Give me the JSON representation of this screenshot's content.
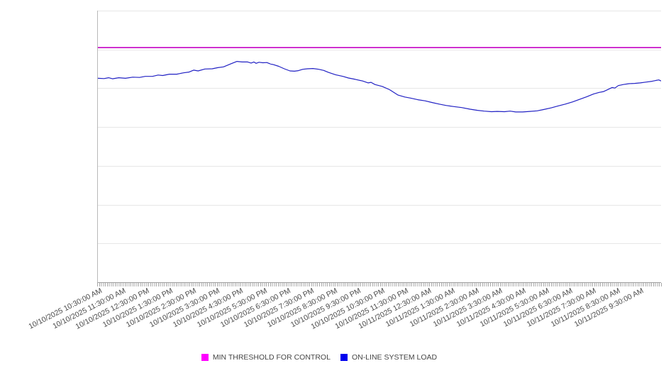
{
  "chart_data": {
    "type": "line",
    "title": "",
    "x_axis": {
      "rotation_deg": -27,
      "tick_labels": [
        "10/10/2025 10:30:00 AM",
        "10/10/2025 11:30:00 AM",
        "10/10/2025 12:30:00 PM",
        "10/10/2025 1:30:00 PM",
        "10/10/2025 2:30:00 PM",
        "10/10/2025 3:30:00 PM",
        "10/10/2025 4:30:00 PM",
        "10/10/2025 5:30:00 PM",
        "10/10/2025 6:30:00 PM",
        "10/10/2025 7:30:00 PM",
        "10/10/2025 8:30:00 PM",
        "10/10/2025 9:30:00 PM",
        "10/10/2025 10:30:00 PM",
        "10/10/2025 11:30:00 PM",
        "10/11/2025 12:30:00 AM",
        "10/11/2025 1:30:00 AM",
        "10/11/2025 2:30:00 AM",
        "10/11/2025 3:30:00 AM",
        "10/11/2025 4:30:00 AM",
        "10/11/2025 5:30:00 AM",
        "10/11/2025 6:30:00 AM",
        "10/11/2025 7:30:00 AM",
        "10/11/2025 8:30:00 AM",
        "10/11/2025 9:30:00 AM"
      ],
      "minor_ticks": "dense per-sample tick comb along full axis"
    },
    "y_axis": {
      "tick_labels_visible": false,
      "gridlines": 7,
      "note": "y axis unlabeled; series values given as percent of plot height (0 = bottom axis, 100 = top gridline)"
    },
    "legend_position": "bottom-center",
    "series": [
      {
        "name": "MIN THRESHOLD FOR CONTROL",
        "type": "threshold",
        "color": "#c814c8",
        "swatch_color": "#ff00ff",
        "value_percent_of_plot_height": 86.4
      },
      {
        "name": "ON-LINE SYSTEM LOAD",
        "type": "line",
        "color": "#2222c4",
        "swatch_color": "#0000ee",
        "points_percent": [
          [
            0.0,
            75.1
          ],
          [
            1.1,
            75.0
          ],
          [
            1.9,
            75.3
          ],
          [
            2.6,
            74.9
          ],
          [
            3.7,
            75.3
          ],
          [
            4.9,
            75.1
          ],
          [
            6.2,
            75.5
          ],
          [
            7.4,
            75.4
          ],
          [
            8.4,
            75.8
          ],
          [
            9.7,
            75.8
          ],
          [
            10.7,
            76.3
          ],
          [
            11.5,
            76.1
          ],
          [
            12.7,
            76.6
          ],
          [
            14.0,
            76.6
          ],
          [
            15.2,
            77.1
          ],
          [
            16.2,
            77.4
          ],
          [
            17.0,
            78.1
          ],
          [
            17.8,
            77.8
          ],
          [
            19.0,
            78.5
          ],
          [
            20.3,
            78.6
          ],
          [
            21.3,
            79.0
          ],
          [
            22.3,
            79.3
          ],
          [
            23.7,
            80.5
          ],
          [
            24.7,
            81.3
          ],
          [
            25.6,
            81.1
          ],
          [
            26.6,
            81.1
          ],
          [
            27.2,
            80.7
          ],
          [
            27.7,
            81.1
          ],
          [
            28.1,
            80.6
          ],
          [
            28.6,
            81.0
          ],
          [
            29.3,
            80.8
          ],
          [
            30.0,
            80.9
          ],
          [
            30.6,
            80.4
          ],
          [
            31.2,
            80.1
          ],
          [
            32.1,
            79.5
          ],
          [
            33.1,
            78.6
          ],
          [
            34.1,
            77.8
          ],
          [
            34.9,
            77.7
          ],
          [
            35.6,
            77.9
          ],
          [
            36.4,
            78.4
          ],
          [
            37.2,
            78.6
          ],
          [
            38.2,
            78.7
          ],
          [
            39.2,
            78.4
          ],
          [
            40.1,
            78.0
          ],
          [
            40.9,
            77.3
          ],
          [
            42.2,
            76.4
          ],
          [
            43.5,
            75.8
          ],
          [
            44.5,
            75.2
          ],
          [
            45.7,
            74.7
          ],
          [
            47.0,
            74.1
          ],
          [
            48.0,
            73.4
          ],
          [
            48.5,
            73.6
          ],
          [
            49.2,
            72.8
          ],
          [
            50.5,
            72.1
          ],
          [
            51.8,
            70.9
          ],
          [
            53.3,
            68.9
          ],
          [
            54.5,
            68.2
          ],
          [
            55.5,
            67.8
          ],
          [
            56.8,
            67.2
          ],
          [
            58.1,
            66.8
          ],
          [
            59.3,
            66.2
          ],
          [
            60.6,
            65.6
          ],
          [
            61.8,
            65.1
          ],
          [
            63.1,
            64.7
          ],
          [
            64.6,
            64.3
          ],
          [
            66.1,
            63.7
          ],
          [
            67.4,
            63.3
          ],
          [
            68.6,
            63.0
          ],
          [
            69.9,
            62.8
          ],
          [
            70.9,
            62.9
          ],
          [
            72.2,
            62.8
          ],
          [
            73.2,
            63.0
          ],
          [
            74.2,
            62.7
          ],
          [
            75.4,
            62.7
          ],
          [
            76.7,
            62.9
          ],
          [
            78.0,
            63.1
          ],
          [
            79.2,
            63.6
          ],
          [
            80.5,
            64.2
          ],
          [
            81.7,
            64.9
          ],
          [
            83.0,
            65.6
          ],
          [
            84.3,
            66.4
          ],
          [
            85.5,
            67.3
          ],
          [
            86.8,
            68.3
          ],
          [
            88.0,
            69.3
          ],
          [
            89.0,
            69.9
          ],
          [
            89.8,
            70.2
          ],
          [
            90.6,
            71.0
          ],
          [
            91.3,
            71.7
          ],
          [
            91.8,
            71.5
          ],
          [
            92.4,
            72.4
          ],
          [
            93.3,
            72.8
          ],
          [
            94.3,
            73.1
          ],
          [
            95.3,
            73.2
          ],
          [
            96.3,
            73.4
          ],
          [
            97.4,
            73.7
          ],
          [
            98.4,
            74.0
          ],
          [
            99.1,
            74.3
          ],
          [
            99.6,
            74.5
          ],
          [
            100.0,
            74.1
          ]
        ]
      }
    ]
  }
}
